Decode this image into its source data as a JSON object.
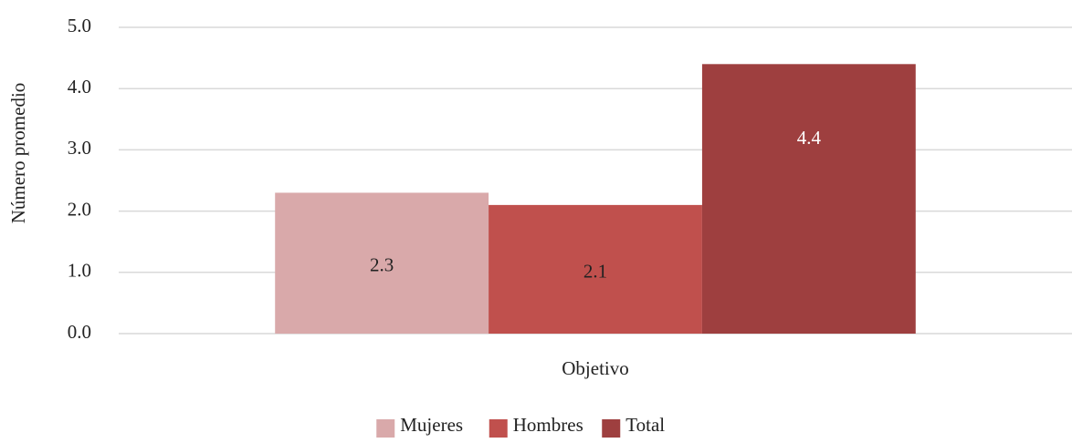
{
  "chart_data": {
    "type": "bar",
    "y_label": "Número promedio",
    "categories": [
      "Objetivo"
    ],
    "series": [
      {
        "name": "Mujeres",
        "color": "#d9a9aa",
        "values": [
          2.3
        ]
      },
      {
        "name": "Hombres",
        "color": "#c0504d",
        "values": [
          2.1
        ]
      },
      {
        "name": "Total",
        "color": "#9e3f3f",
        "values": [
          4.4
        ]
      }
    ],
    "ylim": [
      0,
      5
    ],
    "yticks": [
      {
        "value": 0,
        "label": "0.0"
      },
      {
        "value": 1,
        "label": "1.0"
      },
      {
        "value": 2,
        "label": "2.0"
      },
      {
        "value": 3,
        "label": "3.0"
      },
      {
        "value": 4,
        "label": "4.0"
      },
      {
        "value": 5,
        "label": "5.0"
      }
    ],
    "grid": true,
    "legend": "bottom"
  }
}
